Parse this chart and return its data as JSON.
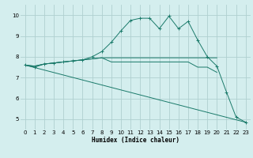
{
  "xlabel": "Humidex (Indice chaleur)",
  "bg_color": "#d4eeee",
  "grid_color": "#b0d0d0",
  "line_color": "#1a7a6a",
  "xlim": [
    -0.5,
    23.5
  ],
  "ylim": [
    4.5,
    10.5
  ],
  "xticks": [
    0,
    1,
    2,
    3,
    4,
    5,
    6,
    7,
    8,
    9,
    10,
    11,
    12,
    13,
    14,
    15,
    16,
    17,
    18,
    19,
    20,
    21,
    22,
    23
  ],
  "yticks": [
    5,
    6,
    7,
    8,
    9,
    10
  ],
  "line1_x": [
    0,
    1,
    2,
    3,
    4,
    5,
    6,
    7,
    8,
    9,
    10,
    11,
    12,
    13,
    14,
    15,
    16,
    17,
    18,
    19,
    20,
    21,
    22,
    23
  ],
  "line1_y": [
    7.6,
    7.5,
    7.65,
    7.7,
    7.75,
    7.8,
    7.85,
    8.0,
    8.25,
    8.7,
    9.25,
    9.75,
    9.85,
    9.85,
    9.35,
    9.95,
    9.35,
    9.7,
    8.8,
    8.0,
    7.55,
    6.3,
    5.1,
    4.85
  ],
  "line2_x": [
    0,
    1,
    2,
    3,
    4,
    5,
    6,
    7,
    8,
    9,
    10,
    11,
    12,
    13,
    14,
    15,
    16,
    17,
    18,
    19,
    20
  ],
  "line2_y": [
    7.6,
    7.55,
    7.65,
    7.7,
    7.75,
    7.8,
    7.85,
    7.9,
    7.95,
    7.95,
    7.95,
    7.95,
    7.95,
    7.95,
    7.95,
    7.95,
    7.95,
    7.95,
    7.95,
    7.95,
    7.95
  ],
  "line3_x": [
    0,
    1,
    2,
    3,
    4,
    5,
    6,
    7,
    8,
    9,
    10,
    11,
    12,
    13,
    14,
    15,
    16,
    17,
    18,
    19,
    20
  ],
  "line3_y": [
    7.6,
    7.55,
    7.65,
    7.7,
    7.75,
    7.8,
    7.85,
    7.9,
    7.95,
    7.75,
    7.75,
    7.75,
    7.75,
    7.75,
    7.75,
    7.75,
    7.75,
    7.75,
    7.5,
    7.5,
    7.25
  ],
  "line4_x": [
    0,
    23
  ],
  "line4_y": [
    7.6,
    4.85
  ]
}
